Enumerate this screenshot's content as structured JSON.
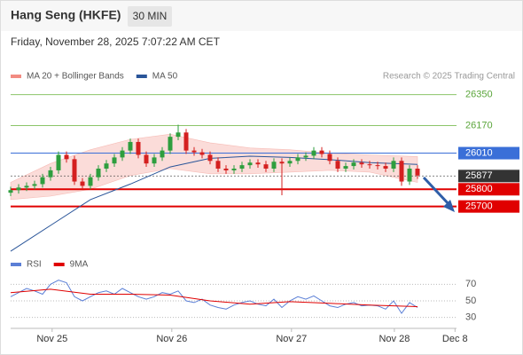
{
  "header": {
    "title": "Hang Seng (HKFE)",
    "interval": "30 MIN",
    "timestamp": "Friday, November 28, 2025 7:07:22 AM CET"
  },
  "chart_data": [
    {
      "type": "candlestick",
      "source": "Research © 2025 Trading Central",
      "xlim": [
        0,
        56
      ],
      "ylim": [
        25430,
        26410
      ],
      "up_color": "#2e9e3e",
      "down_color": "#d42020",
      "candles": {
        "open": [
          25780,
          25795,
          25810,
          25820,
          25830,
          25870,
          25910,
          26000,
          25975,
          25845,
          25820,
          25870,
          25920,
          25950,
          25985,
          26025,
          26075,
          26000,
          25950,
          25985,
          26025,
          26105,
          26130,
          26025,
          26015,
          26000,
          25965,
          25920,
          25910,
          25920,
          25940,
          25955,
          25945,
          25920,
          25960,
          25950,
          25965,
          25985,
          25995,
          26025,
          26005,
          25965,
          25920,
          25935,
          25955,
          25945,
          25940,
          25935,
          25920,
          25965,
          25845,
          25920
        ],
        "high": [
          25815,
          25830,
          25840,
          25850,
          25890,
          25930,
          26020,
          26020,
          25995,
          25865,
          25890,
          25940,
          25970,
          26005,
          26045,
          26095,
          26095,
          26020,
          26005,
          26045,
          26125,
          26175,
          26150,
          26045,
          26035,
          26020,
          25985,
          25940,
          25940,
          25960,
          25975,
          25975,
          25965,
          25980,
          25980,
          25985,
          26005,
          26015,
          26045,
          26045,
          26025,
          25985,
          25955,
          25975,
          25975,
          25965,
          25960,
          25955,
          25985,
          25985,
          25940,
          25940
        ],
        "low": [
          25760,
          25775,
          25790,
          25800,
          25810,
          25850,
          25890,
          25955,
          25825,
          25800,
          25800,
          25850,
          25900,
          25930,
          25965,
          26005,
          25980,
          25930,
          25930,
          25965,
          26005,
          26085,
          26005,
          25995,
          25980,
          25945,
          25900,
          25890,
          25890,
          25900,
          25920,
          25925,
          25900,
          25900,
          25765,
          25930,
          25945,
          25965,
          25975,
          25985,
          25945,
          25900,
          25900,
          25915,
          25925,
          25920,
          25915,
          25900,
          25900,
          25820,
          25825,
          25860
        ],
        "close": [
          25795,
          25810,
          25820,
          25830,
          25870,
          25910,
          26000,
          25975,
          25845,
          25820,
          25870,
          25920,
          25950,
          25985,
          26025,
          26075,
          26000,
          25950,
          25985,
          26025,
          26105,
          26130,
          26025,
          26015,
          26000,
          25965,
          25920,
          25910,
          25920,
          25940,
          25955,
          25945,
          25920,
          25960,
          25950,
          25965,
          25985,
          25995,
          26025,
          26005,
          25965,
          25920,
          25935,
          25955,
          25945,
          25940,
          25935,
          25920,
          25965,
          25845,
          25920,
          25880
        ]
      },
      "series": [
        {
          "name": "MA 20 + Bollinger Bands",
          "color": "#f28b82",
          "x": [
            0,
            5,
            10,
            15,
            20,
            25,
            30,
            35,
            40,
            45,
            51
          ],
          "upper": [
            25840,
            25950,
            26030,
            26090,
            26120,
            26070,
            26040,
            26030,
            26010,
            26000,
            25990
          ],
          "lower": [
            25740,
            25760,
            25800,
            25880,
            25920,
            25890,
            25890,
            25900,
            25910,
            25900,
            25840
          ]
        },
        {
          "name": "MA 50",
          "color": "#2a5599",
          "x": [
            0,
            5,
            10,
            15,
            20,
            25,
            30,
            35,
            40,
            45,
            51
          ],
          "values": [
            25440,
            25590,
            25740,
            25830,
            25930,
            25980,
            25992,
            25985,
            25972,
            25955,
            25945
          ]
        }
      ],
      "levels": [
        {
          "value": 26350,
          "color": "#8cc56a",
          "style": "thin",
          "boxed": false
        },
        {
          "value": 26170,
          "color": "#8cc56a",
          "style": "thin",
          "boxed": false
        },
        {
          "value": 26010,
          "color": "#3a6fd8",
          "style": "thin",
          "boxed": true
        },
        {
          "value": 25877,
          "color": "#333333",
          "style": "dotted",
          "boxed": true
        },
        {
          "value": 25800,
          "color": "#e00000",
          "style": "bold",
          "boxed": true
        },
        {
          "value": 25700,
          "color": "#e00000",
          "style": "bold",
          "boxed": true
        }
      ]
    },
    {
      "type": "line",
      "xlim": [
        0,
        56
      ],
      "xticks": [
        {
          "value": 5.2,
          "label": "Nov 25"
        },
        {
          "value": 20.2,
          "label": "Nov 26"
        },
        {
          "value": 35.2,
          "label": "Nov 27"
        },
        {
          "value": 48.1,
          "label": "Nov 28"
        },
        {
          "value": 55.7,
          "label": "Dec 8"
        }
      ],
      "ylim": [
        20,
        80
      ],
      "yticks": [
        70,
        50,
        30
      ],
      "grid": true,
      "series": [
        {
          "name": "RSI",
          "color": "#5b7fd6",
          "values": [
            55,
            60,
            65,
            62,
            58,
            70,
            75,
            72,
            55,
            50,
            55,
            60,
            62,
            58,
            65,
            60,
            55,
            52,
            55,
            60,
            58,
            62,
            50,
            48,
            52,
            45,
            42,
            40,
            45,
            48,
            50,
            46,
            44,
            52,
            42,
            50,
            55,
            52,
            56,
            50,
            44,
            42,
            46,
            48,
            44,
            45,
            44,
            40,
            50,
            35,
            48,
            42
          ]
        },
        {
          "name": "9MA",
          "color": "#e00000",
          "x": [
            0,
            5,
            10,
            15,
            20,
            25,
            30,
            35,
            40,
            45,
            51
          ],
          "values": [
            60,
            64,
            58,
            58,
            57,
            50,
            46,
            49,
            47,
            45,
            43
          ]
        }
      ]
    }
  ]
}
